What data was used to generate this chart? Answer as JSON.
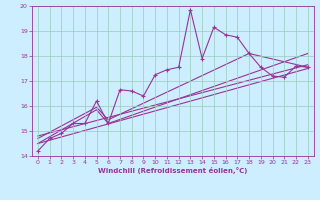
{
  "xlabel": "Windchill (Refroidissement éolien,°C)",
  "bg_color": "#cceeff",
  "line_color": "#993399",
  "grid_color": "#99ccbb",
  "xlim": [
    -0.5,
    23.5
  ],
  "ylim": [
    14,
    20
  ],
  "xticks": [
    0,
    1,
    2,
    3,
    4,
    5,
    6,
    7,
    8,
    9,
    10,
    11,
    12,
    13,
    14,
    15,
    16,
    17,
    18,
    19,
    20,
    21,
    22,
    23
  ],
  "yticks": [
    14,
    15,
    16,
    17,
    18,
    19,
    20
  ],
  "scatter_x": [
    0,
    1,
    2,
    3,
    4,
    5,
    6,
    7,
    8,
    9,
    10,
    11,
    12,
    13,
    14,
    15,
    16,
    17,
    18,
    19,
    20,
    21,
    22,
    23
  ],
  "scatter_y": [
    14.2,
    14.7,
    14.9,
    15.3,
    15.3,
    16.2,
    15.3,
    16.65,
    16.6,
    16.4,
    17.25,
    17.45,
    17.55,
    19.85,
    17.9,
    19.15,
    18.85,
    18.75,
    18.1,
    17.55,
    17.2,
    17.15,
    17.6,
    17.55
  ],
  "trend1_x": [
    0,
    23
  ],
  "trend1_y": [
    14.5,
    17.5
  ],
  "trend2_x": [
    0,
    23
  ],
  "trend2_y": [
    14.8,
    17.65
  ],
  "trend3_x": [
    0,
    5,
    6,
    23
  ],
  "trend3_y": [
    14.5,
    15.85,
    15.3,
    18.1
  ],
  "trend4_x": [
    0,
    5,
    6,
    18,
    23
  ],
  "trend4_y": [
    14.7,
    15.95,
    15.45,
    18.1,
    17.55
  ]
}
